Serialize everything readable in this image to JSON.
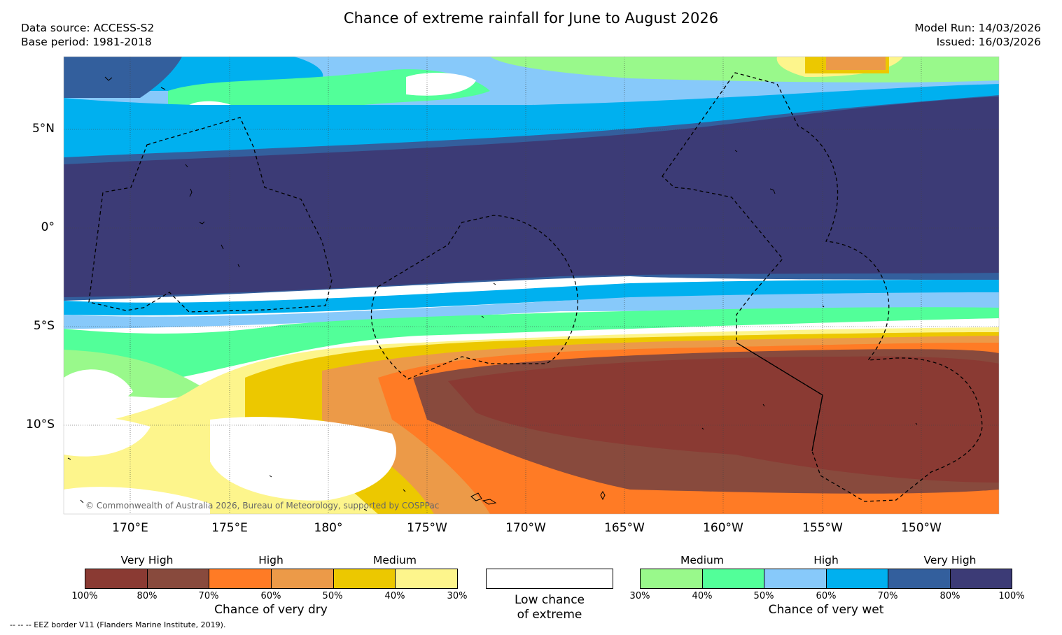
{
  "title": "Chance of extreme rainfall for June to August 2026",
  "meta_left": {
    "source": "Data source: ACCESS-S2",
    "base": "Base period: 1981-2018"
  },
  "meta_right": {
    "run": "Model Run: 14/03/2026",
    "issued": "Issued: 16/03/2026"
  },
  "map": {
    "lat_labels": [
      "5°N",
      "0°",
      "5°S",
      "10°S"
    ],
    "lon_labels": [
      "170°E",
      "175°E",
      "180°",
      "175°W",
      "170°W",
      "165°W",
      "160°W",
      "155°W",
      "150°W"
    ],
    "copyright": "© Commonwealth of Australia 2026, Bureau of Meteorology, supported by COSPPac"
  },
  "legend_dry": {
    "categories": [
      "Very High",
      "High",
      "Medium"
    ],
    "ticks": [
      "100%",
      "80%",
      "70%",
      "60%",
      "50%",
      "40%",
      "30%"
    ],
    "colors": [
      "#8a3a33",
      "#884a3d",
      "#ff7b25",
      "#ec9a48",
      "#ecc800",
      "#fdf58c"
    ],
    "caption": "Chance of very dry"
  },
  "legend_low": {
    "line1": "Low chance",
    "line2": "of extreme"
  },
  "legend_wet": {
    "categories": [
      "Medium",
      "High",
      "Very High"
    ],
    "ticks": [
      "30%",
      "40%",
      "50%",
      "60%",
      "70%",
      "80%",
      "100%"
    ],
    "colors": [
      "#99f98b",
      "#52ff99",
      "#87c9fa",
      "#00b0ef",
      "#335f9d",
      "#3c3b76"
    ],
    "caption": "Chance of very wet"
  },
  "footnote": "--  --  -- EEZ border V11 (Flanders Marine Institute, 2019)."
}
